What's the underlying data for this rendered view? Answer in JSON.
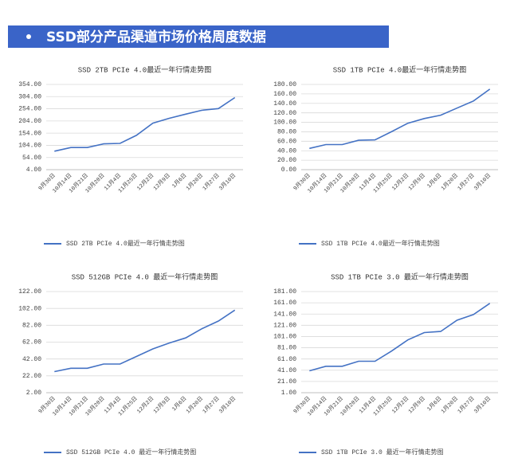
{
  "header": {
    "title": "SSD部分产品渠道市场价格周度数据"
  },
  "chart_data": [
    {
      "type": "line",
      "title": "SSD 2TB PCIe 4.0最近一年行情走势图",
      "categories": [
        "9月30日",
        "10月14日",
        "10月21日",
        "10月28日",
        "11月4日",
        "11月25日",
        "12月2日",
        "12月9日",
        "1月6日",
        "1月20日",
        "1月27日",
        "3月10日"
      ],
      "series": [
        {
          "name": "SSD 2TB PCIe 4.0最近一年行情走势图",
          "color": "#4472c4",
          "values": [
            80,
            95,
            95,
            110,
            112,
            145,
            195,
            215,
            232,
            248,
            255,
            300
          ]
        }
      ],
      "ylim": [
        4,
        354
      ],
      "yticks": [
        {
          "value": 4,
          "label": "4.00"
        },
        {
          "value": 54,
          "label": "54.00"
        },
        {
          "value": 104,
          "label": "104.00"
        },
        {
          "value": 154,
          "label": "154.00"
        },
        {
          "value": 204,
          "label": "204.00"
        },
        {
          "value": 254,
          "label": "254.00"
        },
        {
          "value": 304,
          "label": "304.00"
        },
        {
          "value": 354,
          "label": "354.00"
        }
      ],
      "grid": true,
      "legend": "bottom"
    },
    {
      "type": "line",
      "title": "SSD 1TB PCIe 4.0最近一年行情走势图",
      "categories": [
        "9月30日",
        "10月14日",
        "10月21日",
        "10月28日",
        "11月4日",
        "11月25日",
        "12月2日",
        "12月9日",
        "1月6日",
        "1月20日",
        "1月27日",
        "3月10日"
      ],
      "series": [
        {
          "name": "SSD 1TB PCIe 4.0最近一年行情走势图",
          "color": "#4472c4",
          "values": [
            45,
            53,
            53,
            62,
            63,
            80,
            98,
            108,
            115,
            130,
            145,
            170
          ]
        }
      ],
      "ylim": [
        0,
        180
      ],
      "yticks": [
        {
          "value": 0,
          "label": "0.00"
        },
        {
          "value": 20,
          "label": "20.00"
        },
        {
          "value": 40,
          "label": "40.00"
        },
        {
          "value": 60,
          "label": "60.00"
        },
        {
          "value": 80,
          "label": "80.00"
        },
        {
          "value": 100,
          "label": "100.00"
        },
        {
          "value": 120,
          "label": "120.00"
        },
        {
          "value": 140,
          "label": "140.00"
        },
        {
          "value": 160,
          "label": "160.00"
        },
        {
          "value": 180,
          "label": "180.00"
        }
      ],
      "grid": true,
      "legend": "bottom"
    },
    {
      "type": "line",
      "title": "SSD 512GB PCIe 4.0 最近一年行情走势图",
      "categories": [
        "9月30日",
        "10月14日",
        "10月21日",
        "10月28日",
        "11月4日",
        "11月25日",
        "12月2日",
        "12月9日",
        "1月6日",
        "1月20日",
        "1月27日",
        "3月10日"
      ],
      "series": [
        {
          "name": "SSD 512GB PCIe 4.0 最近一年行情走势图",
          "color": "#4472c4",
          "values": [
            27,
            31,
            31,
            36,
            36,
            45,
            54,
            61,
            67,
            78,
            87,
            100
          ]
        }
      ],
      "ylim": [
        2,
        122
      ],
      "yticks": [
        {
          "value": 2,
          "label": "2.00"
        },
        {
          "value": 22,
          "label": "22.00"
        },
        {
          "value": 42,
          "label": "42.00"
        },
        {
          "value": 62,
          "label": "62.00"
        },
        {
          "value": 82,
          "label": "82.00"
        },
        {
          "value": 102,
          "label": "102.00"
        },
        {
          "value": 122,
          "label": "122.00"
        }
      ],
      "grid": true,
      "legend": "bottom"
    },
    {
      "type": "line",
      "title": "SSD 1TB PCIe 3.0 最近一年行情走势图",
      "categories": [
        "9月30日",
        "10月14日",
        "10月21日",
        "10月28日",
        "11月4日",
        "11月25日",
        "12月2日",
        "12月9日",
        "1月6日",
        "1月20日",
        "1月27日",
        "3月10日"
      ],
      "series": [
        {
          "name": "SSD 1TB PCIe 3.0 最近一年行情走势图",
          "color": "#4472c4",
          "values": [
            40,
            48,
            48,
            57,
            57,
            75,
            95,
            108,
            110,
            130,
            140,
            160
          ]
        }
      ],
      "ylim": [
        1,
        181
      ],
      "yticks": [
        {
          "value": 1,
          "label": "1.00"
        },
        {
          "value": 21,
          "label": "21.00"
        },
        {
          "value": 41,
          "label": "41.00"
        },
        {
          "value": 61,
          "label": "61.00"
        },
        {
          "value": 81,
          "label": "81.00"
        },
        {
          "value": 101,
          "label": "101.00"
        },
        {
          "value": 121,
          "label": "121.00"
        },
        {
          "value": 141,
          "label": "141.00"
        },
        {
          "value": 161,
          "label": "161.00"
        },
        {
          "value": 181,
          "label": "181.00"
        }
      ],
      "grid": true,
      "legend": "bottom"
    }
  ]
}
